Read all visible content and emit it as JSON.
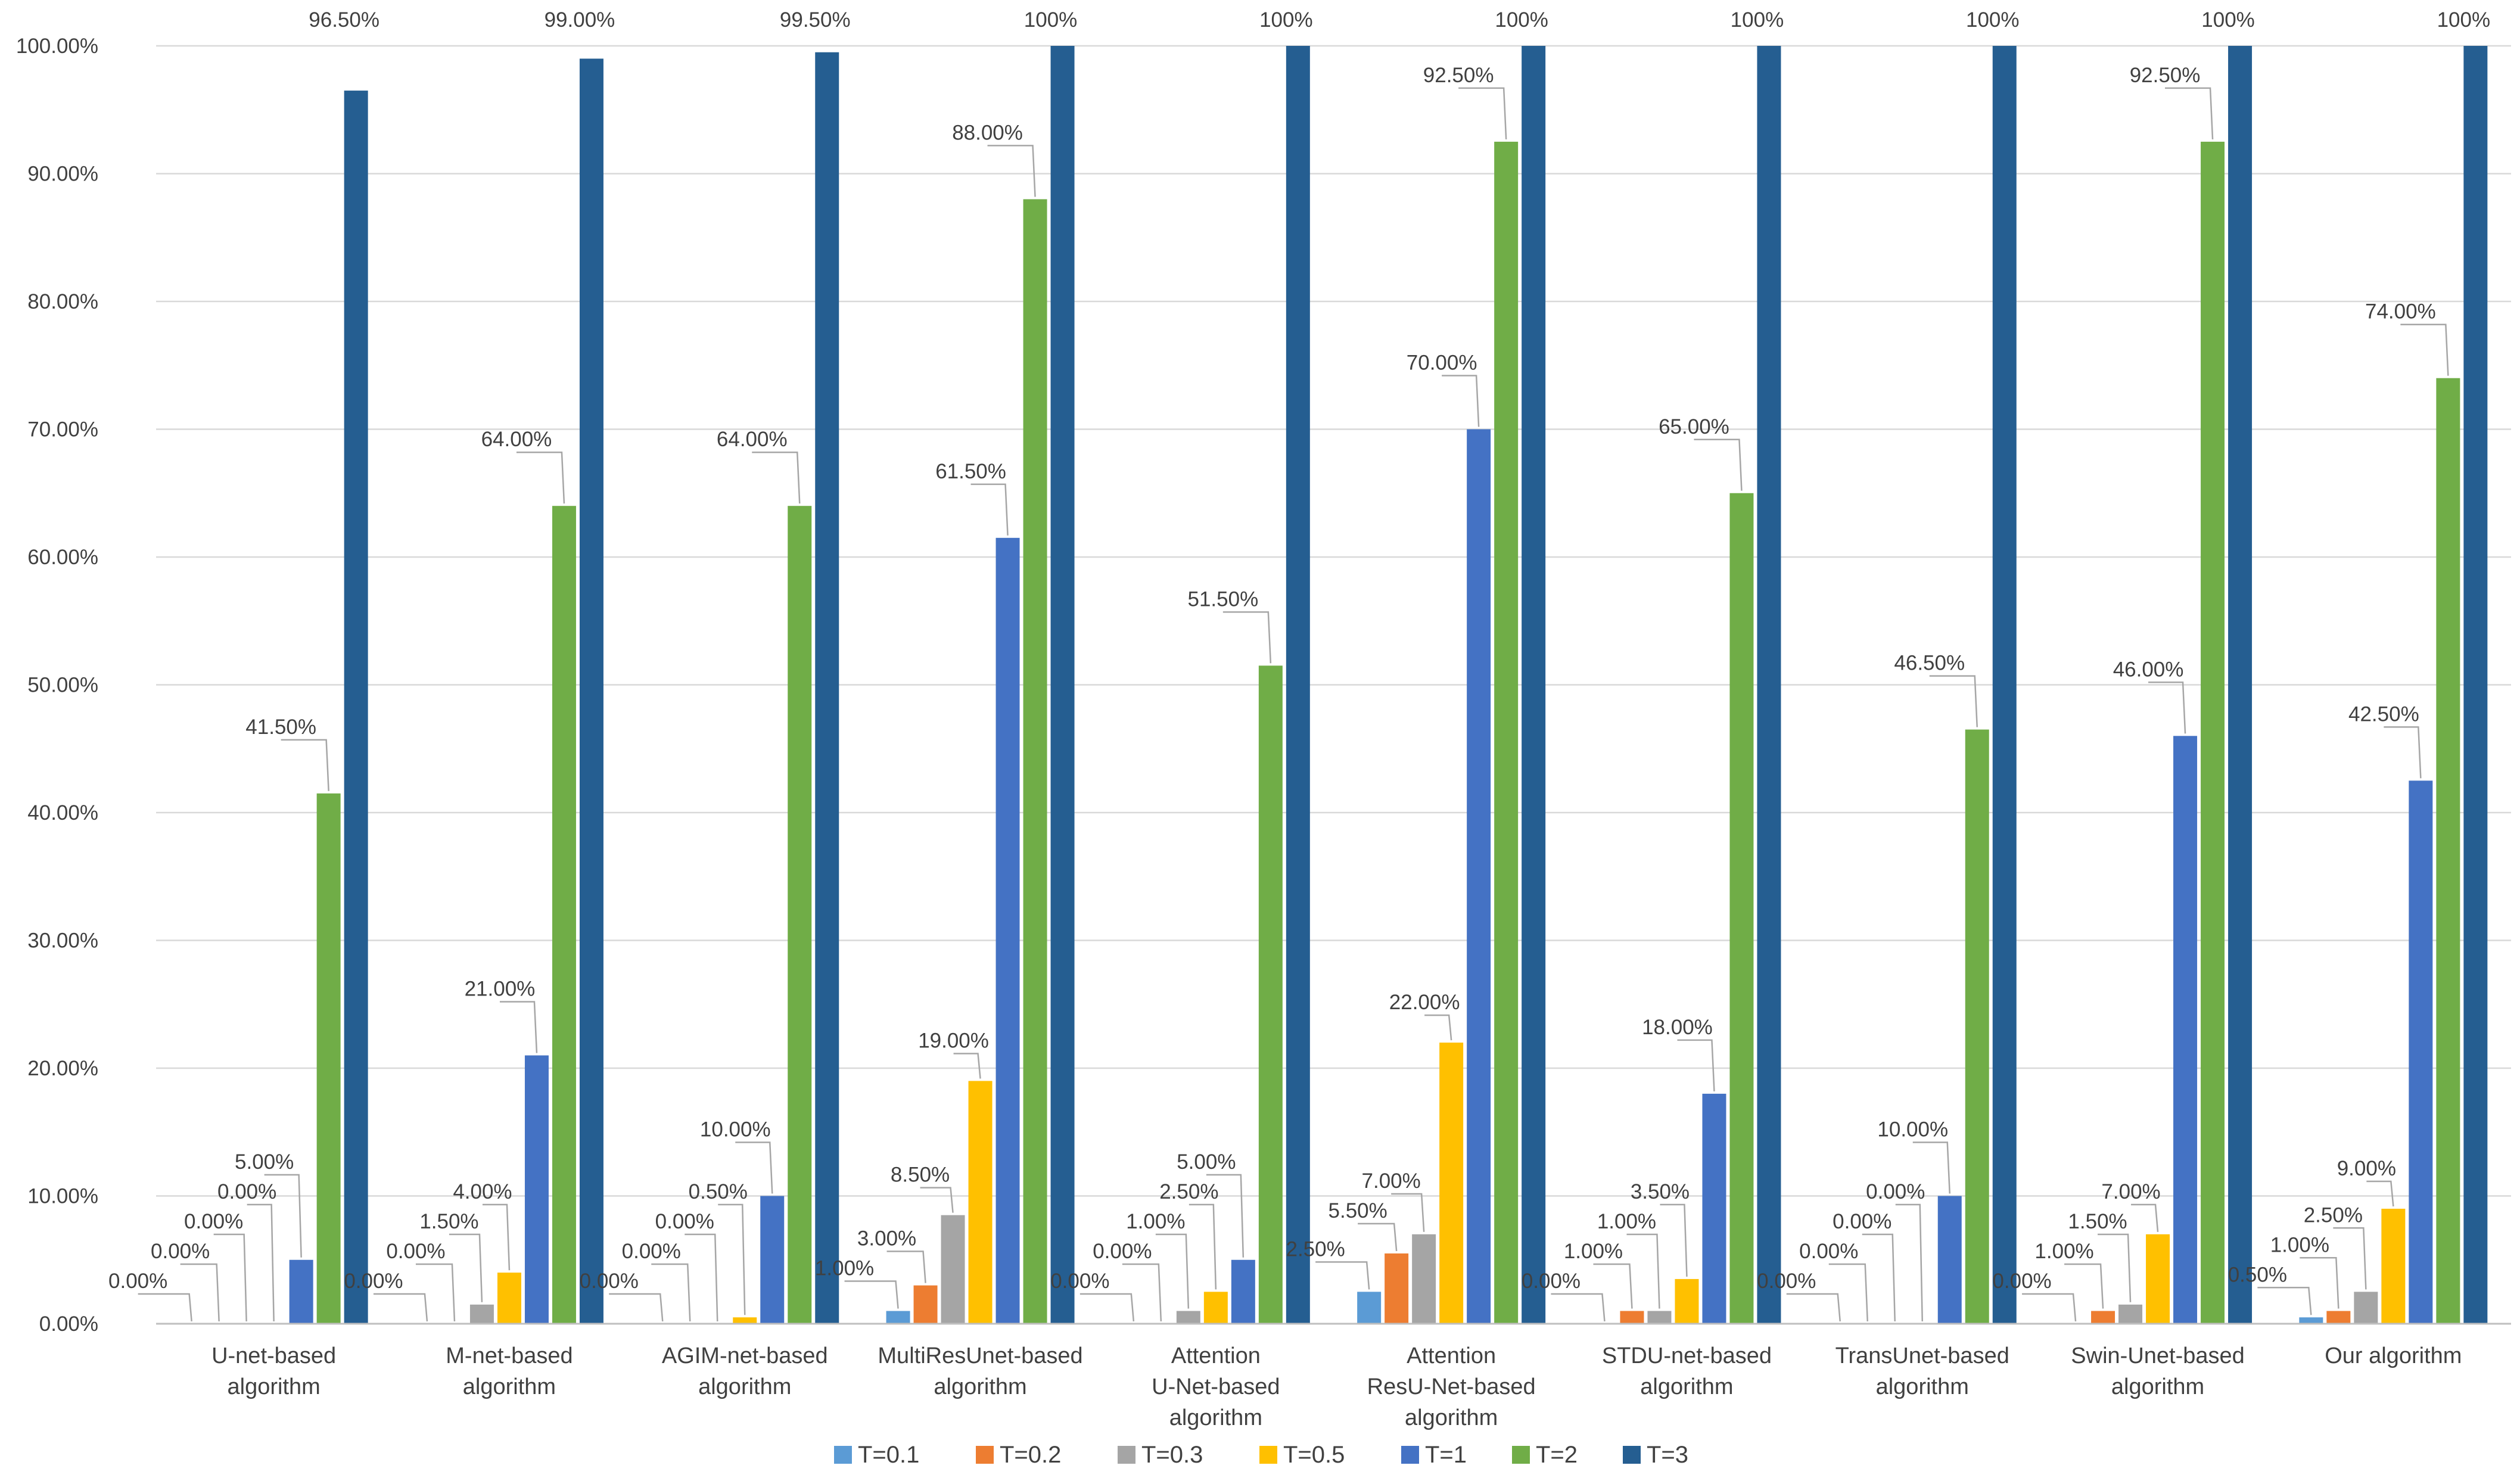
{
  "chart_data": {
    "type": "bar",
    "title": "",
    "xlabel": "",
    "ylabel": "",
    "ylim": [
      0,
      100
    ],
    "y_ticks": [
      "0.00%",
      "10.00%",
      "20.00%",
      "30.00%",
      "40.00%",
      "50.00%",
      "60.00%",
      "70.00%",
      "80.00%",
      "90.00%",
      "100.00%"
    ],
    "grid": true,
    "legend_position": "bottom",
    "categories": [
      [
        "U-net-based",
        "algorithm"
      ],
      [
        "M-net-based",
        "algorithm"
      ],
      [
        "AGIM-net-based",
        "algorithm"
      ],
      [
        "MultiResUnet-based",
        "algorithm"
      ],
      [
        "Attention",
        "U-Net-based",
        "algorithm"
      ],
      [
        "Attention",
        "ResU-Net-based",
        "algorithm"
      ],
      [
        "STDU-net-based",
        "algorithm"
      ],
      [
        "TransUnet-based",
        "algorithm"
      ],
      [
        "Swin-Unet-based",
        "algorithm"
      ],
      [
        "Our algorithm"
      ]
    ],
    "series": [
      {
        "name": "T=0.1",
        "color": "#5b9bd5",
        "values": [
          0,
          0,
          0,
          1.0,
          0,
          2.5,
          0,
          0,
          0,
          0.5
        ],
        "labels": [
          "0.00%",
          "0.00%",
          "0.00%",
          "1.00%",
          "0.00%",
          "2.50%",
          "0.00%",
          "0.00%",
          "0.00%",
          "0.50%"
        ]
      },
      {
        "name": "T=0.2",
        "color": "#ed7d31",
        "values": [
          0,
          0,
          0,
          3.0,
          0,
          5.5,
          1.0,
          0,
          1.0,
          1.0
        ],
        "labels": [
          "0.00%",
          "0.00%",
          "0.00%",
          "3.00%",
          "0.00%",
          "5.50%",
          "1.00%",
          "0.00%",
          "1.00%",
          "1.00%"
        ]
      },
      {
        "name": "T=0.3",
        "color": "#a5a5a5",
        "values": [
          0,
          1.5,
          0,
          8.5,
          1.0,
          7.0,
          1.0,
          0,
          1.5,
          2.5
        ],
        "labels": [
          "0.00%",
          "1.50%",
          "0.00%",
          "8.50%",
          "1.00%",
          "7.00%",
          "1.00%",
          "0.00%",
          "1.50%",
          "2.50%"
        ]
      },
      {
        "name": "T=0.5",
        "color": "#ffc000",
        "values": [
          0,
          4.0,
          0.5,
          19.0,
          2.5,
          22.0,
          3.5,
          0,
          7.0,
          9.0
        ],
        "labels": [
          "0.00%",
          "4.00%",
          "0.50%",
          "19.00%",
          "2.50%",
          "22.00%",
          "3.50%",
          "0.00%",
          "7.00%",
          "9.00%"
        ]
      },
      {
        "name": "T=1",
        "color": "#4472c4",
        "values": [
          5.0,
          21.0,
          10.0,
          61.5,
          5.0,
          70.0,
          18.0,
          10.0,
          46.0,
          42.5
        ],
        "labels": [
          "5.00%",
          "21.00%",
          "10.00%",
          "61.50%",
          "5.00%",
          "70.00%",
          "18.00%",
          "10.00%",
          "46.00%",
          "42.50%"
        ]
      },
      {
        "name": "T=2",
        "color": "#70ad47",
        "values": [
          41.5,
          64.0,
          64.0,
          88.0,
          51.5,
          92.5,
          65.0,
          46.5,
          92.5,
          74.0
        ],
        "labels": [
          "41.50%",
          "64.00%",
          "64.00%",
          "88.00%",
          "51.50%",
          "92.50%",
          "65.00%",
          "46.50%",
          "92.50%",
          "74.00%"
        ]
      },
      {
        "name": "T=3",
        "color": "#255e91",
        "values": [
          96.5,
          99.0,
          99.5,
          100,
          100,
          100,
          100,
          100,
          100,
          100
        ],
        "labels": [
          "96.50%",
          "99.00%",
          "99.50%",
          "100%",
          "100%",
          "100%",
          "100%",
          "100%",
          "100%",
          "100%"
        ]
      }
    ]
  }
}
